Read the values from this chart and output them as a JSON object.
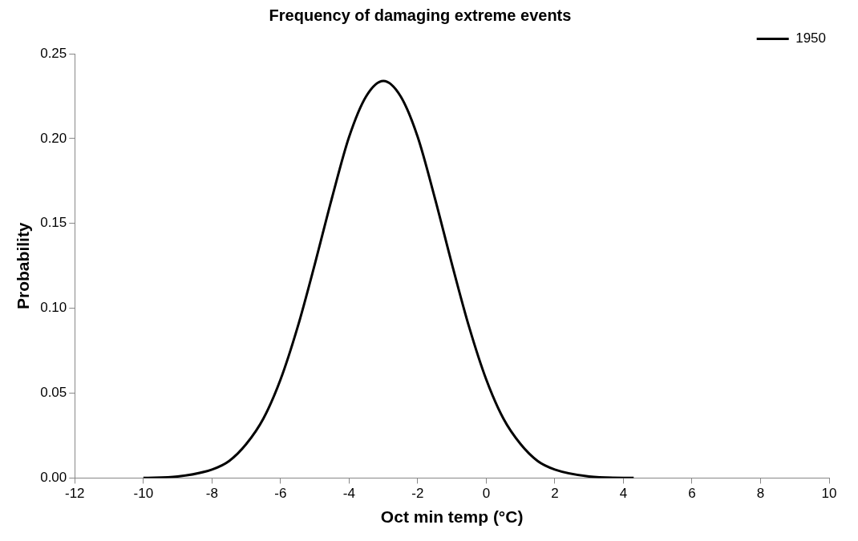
{
  "chart_data": {
    "type": "line",
    "title": "Frequency of damaging extreme events",
    "xlabel": "Oct min temp (°C)",
    "ylabel": "Probability",
    "series": [
      {
        "name": "1950",
        "color": "#000000",
        "x": [
          -10,
          -9,
          -8,
          -7.5,
          -7,
          -6.5,
          -6,
          -5.5,
          -5,
          -4.5,
          -4,
          -3.5,
          -3,
          -2.5,
          -2,
          -1.5,
          -1,
          -0.5,
          0,
          0.5,
          1,
          1.5,
          2,
          3,
          4,
          4.3
        ],
        "values": [
          0.0001,
          0.0009,
          0.005,
          0.01,
          0.02,
          0.035,
          0.058,
          0.089,
          0.126,
          0.165,
          0.201,
          0.225,
          0.234,
          0.225,
          0.201,
          0.165,
          0.126,
          0.089,
          0.058,
          0.035,
          0.02,
          0.01,
          0.005,
          0.0009,
          0.0001,
          0.0001
        ]
      }
    ],
    "xlim": [
      -12,
      10
    ],
    "xticks": [
      -12,
      -10,
      -8,
      -6,
      -4,
      -2,
      0,
      2,
      4,
      6,
      8,
      10
    ],
    "ylim": [
      0,
      0.25
    ],
    "yticks": [
      {
        "value": 0,
        "label": "0.00"
      },
      {
        "value": 0.05,
        "label": "0.05"
      },
      {
        "value": 0.1,
        "label": "0.10"
      },
      {
        "value": 0.15,
        "label": "0.15"
      },
      {
        "value": 0.2,
        "label": "0.20"
      },
      {
        "value": 0.25,
        "label": "0.25"
      }
    ],
    "grid": false,
    "legend": "top right",
    "marker": "none",
    "line_style": "solid"
  }
}
